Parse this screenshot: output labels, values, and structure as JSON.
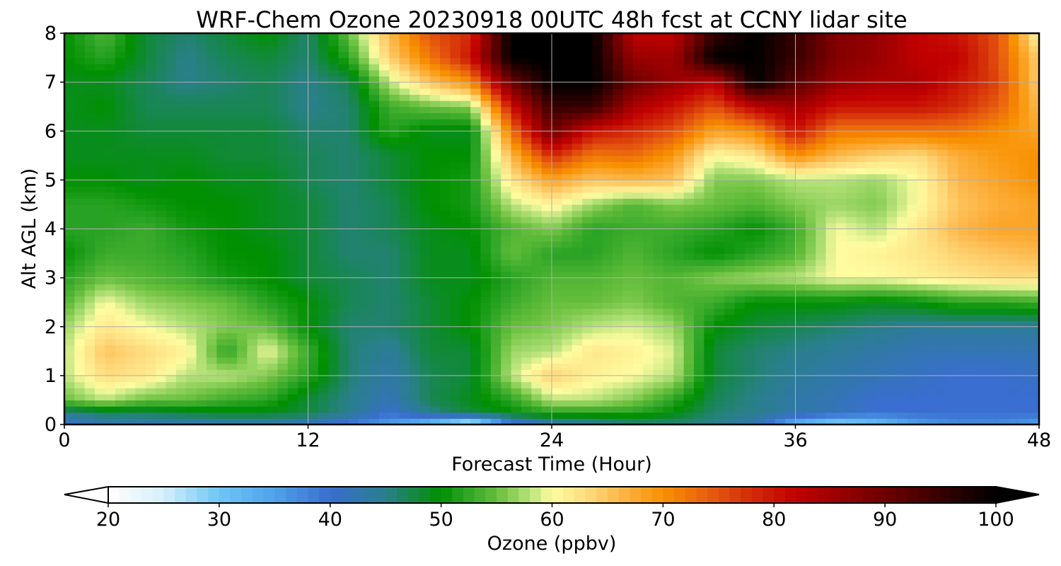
{
  "chart_data": {
    "type": "heatmap",
    "title": "WRF-Chem Ozone  20230918 00UTC 48h fcst at CCNY lidar site",
    "xlabel": "Forecast Time (Hour)",
    "ylabel": "Alt AGL (km)",
    "xlim": [
      0,
      48
    ],
    "ylim": [
      0,
      8
    ],
    "x_ticks": [
      0,
      12,
      24,
      36,
      48
    ],
    "y_ticks": [
      0,
      1,
      2,
      3,
      4,
      5,
      6,
      7,
      8
    ],
    "grid": true,
    "time_hours": [
      0,
      2,
      4,
      6,
      8,
      10,
      12,
      14,
      16,
      18,
      20,
      22,
      24,
      26,
      28,
      30,
      32,
      34,
      36,
      38,
      40,
      42,
      44,
      46,
      48
    ],
    "altitude_km": [
      0,
      0.25,
      0.5,
      1,
      1.5,
      2,
      2.5,
      3,
      3.5,
      4,
      4.5,
      5,
      5.5,
      6,
      6.5,
      7,
      7.5,
      8
    ],
    "ozone_ppbv": [
      [
        40,
        42,
        42,
        42,
        42,
        42,
        41,
        38,
        35,
        30,
        22,
        37,
        42,
        43,
        45,
        45,
        45,
        42,
        32,
        27,
        30,
        35,
        37,
        37,
        35
      ],
      [
        45,
        47,
        47,
        48,
        49,
        49,
        48,
        45,
        40,
        45,
        48,
        50,
        52,
        52,
        52,
        50,
        46,
        45,
        43,
        42,
        40,
        40,
        40,
        40,
        40
      ],
      [
        55,
        58,
        55,
        55,
        53,
        52,
        48,
        45,
        42,
        47,
        49,
        52,
        58,
        58,
        56,
        52,
        47,
        45,
        43,
        42,
        40,
        40,
        40,
        40,
        40
      ],
      [
        58,
        63,
        62,
        58,
        58,
        56,
        52,
        46,
        43,
        47,
        48,
        58,
        64,
        61,
        60,
        58,
        48,
        46,
        44,
        43,
        42,
        41,
        40,
        40,
        41
      ],
      [
        58,
        65,
        63,
        61,
        52,
        60,
        53,
        46,
        44,
        48,
        48,
        57,
        58,
        62,
        61,
        59,
        48,
        46,
        45,
        44,
        43,
        42,
        42,
        42,
        42
      ],
      [
        57,
        62,
        60,
        58,
        56,
        55,
        50,
        46,
        46,
        48,
        50,
        55,
        56,
        58,
        59,
        57,
        50,
        48,
        47,
        46,
        45,
        44,
        44,
        44,
        44
      ],
      [
        54,
        60,
        57,
        56,
        55,
        52,
        50,
        47,
        46,
        48,
        50,
        53,
        55,
        55,
        56,
        54,
        53,
        50,
        50,
        50,
        49,
        50,
        52,
        52,
        53
      ],
      [
        52,
        55,
        54,
        53,
        51,
        50,
        48,
        47,
        46,
        49,
        49,
        52,
        54,
        54,
        55,
        54,
        56,
        57,
        58,
        60,
        60,
        61,
        62,
        63,
        63
      ],
      [
        50,
        53,
        53,
        52,
        50,
        50,
        48,
        46,
        46,
        49,
        49,
        55,
        52,
        52,
        54,
        52,
        50,
        52,
        54,
        60,
        61,
        62,
        64,
        65,
        66
      ],
      [
        52,
        52,
        53,
        51,
        50,
        49,
        48,
        46,
        47,
        49,
        50,
        54,
        56,
        52,
        53,
        53,
        52,
        50,
        53,
        60,
        58,
        62,
        66,
        68,
        68
      ],
      [
        52,
        52,
        51,
        50,
        50,
        49,
        48,
        46,
        47,
        50,
        51,
        58,
        61,
        57,
        54,
        56,
        55,
        54,
        56,
        57,
        56,
        60,
        65,
        67,
        68
      ],
      [
        50,
        50,
        49,
        50,
        49,
        49,
        47,
        46,
        48,
        50,
        51,
        62,
        68,
        65,
        66,
        65,
        56,
        56,
        58,
        58,
        57,
        60,
        66,
        68,
        70
      ],
      [
        49,
        49,
        49,
        49,
        48,
        48,
        47,
        46,
        48,
        50,
        50,
        66,
        78,
        72,
        73,
        69,
        60,
        62,
        70,
        66,
        64,
        63,
        67,
        69,
        70
      ],
      [
        49,
        49,
        48,
        48,
        48,
        48,
        46,
        46,
        52,
        49,
        49,
        72,
        90,
        80,
        78,
        75,
        68,
        70,
        80,
        72,
        72,
        72,
        72,
        70,
        68
      ],
      [
        49,
        50,
        47,
        47,
        47,
        47,
        45,
        46,
        53,
        55,
        56,
        80,
        95,
        95,
        84,
        80,
        75,
        82,
        85,
        80,
        80,
        80,
        78,
        74,
        66
      ],
      [
        49,
        49,
        47,
        45,
        46,
        47,
        45,
        47,
        58,
        65,
        70,
        90,
        100,
        100,
        90,
        86,
        82,
        100,
        92,
        86,
        84,
        84,
        80,
        76,
        64
      ],
      [
        50,
        52,
        48,
        45,
        47,
        48,
        46,
        52,
        64,
        72,
        80,
        100,
        100,
        100,
        86,
        85,
        100,
        100,
        95,
        88,
        86,
        82,
        82,
        75,
        64
      ],
      [
        50,
        54,
        48,
        46,
        48,
        50,
        46,
        55,
        66,
        75,
        78,
        100,
        100,
        100,
        82,
        82,
        95,
        100,
        95,
        88,
        86,
        82,
        80,
        75,
        60
      ]
    ],
    "colorbar": {
      "label": "Ozone  (ppbv)",
      "min": 20,
      "max": 100,
      "ticks": [
        20,
        30,
        40,
        50,
        60,
        70,
        80,
        90,
        100
      ],
      "extend": "both",
      "colors": [
        [
          20,
          "#ffffff"
        ],
        [
          25,
          "#d4effc"
        ],
        [
          30,
          "#6ec6f5"
        ],
        [
          35,
          "#4fa2ea"
        ],
        [
          40,
          "#3a6ed0"
        ],
        [
          45,
          "#2a7f8c"
        ],
        [
          50,
          "#009000"
        ],
        [
          52,
          "#28a224"
        ],
        [
          55,
          "#66be3c"
        ],
        [
          58,
          "#b7e27a"
        ],
        [
          60,
          "#fffca0"
        ],
        [
          63,
          "#fedd80"
        ],
        [
          66,
          "#fdb84c"
        ],
        [
          70,
          "#f89000"
        ],
        [
          74,
          "#e86010"
        ],
        [
          78,
          "#d22a08"
        ],
        [
          82,
          "#c00000"
        ],
        [
          90,
          "#6e0000"
        ],
        [
          100,
          "#000000"
        ]
      ]
    }
  }
}
